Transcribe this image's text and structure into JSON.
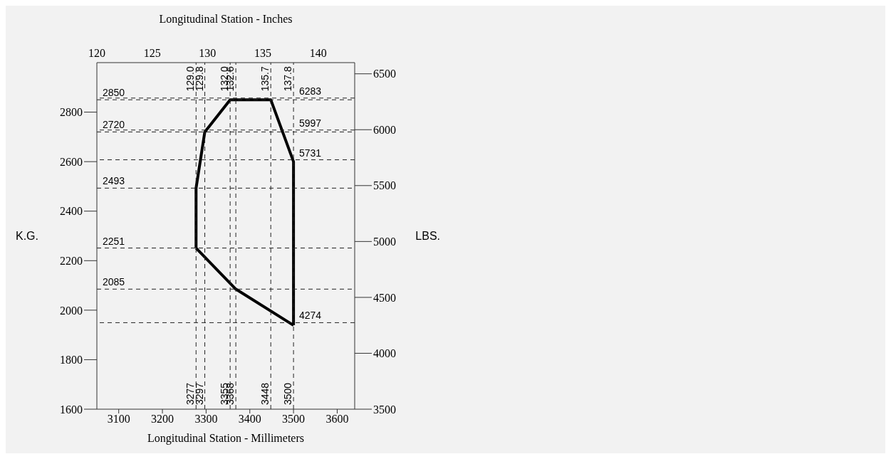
{
  "chart_data": {
    "type": "line",
    "xlabel": "Longitudinal Station  -  Millimeters",
    "x2label": "Longitudinal Station - Inches",
    "ylabel": "K.G.",
    "y2label": "LBS.",
    "xlim": [
      3050,
      3640
    ],
    "xticks": [
      3100,
      3200,
      3300,
      3400,
      3500,
      3600
    ],
    "x2lim": [
      120,
      143.3
    ],
    "x2ticks": [
      120,
      125,
      130,
      135,
      140
    ],
    "ylim": [
      1600,
      3000
    ],
    "yticks": [
      1600,
      1800,
      2000,
      2200,
      2400,
      2600,
      2800
    ],
    "y2lim": [
      3500,
      6600
    ],
    "y2ticks": [
      3500,
      4000,
      4500,
      5000,
      5500,
      6000,
      6500
    ],
    "series": [
      {
        "color": "#000000",
        "x": [
          3277,
          3277,
          3297,
          3355,
          3448,
          3500,
          3500
        ],
        "values": [
          2251,
          2493,
          2720,
          2850,
          2850,
          2600,
          1939
        ]
      },
      {
        "color": "#000000",
        "x": [
          3277,
          3368,
          3500
        ],
        "values": [
          2251,
          2085,
          1939
        ]
      }
    ],
    "ref_lines": [
      {
        "axis": "y",
        "value": 2850,
        "label": "2850",
        "line_style": "dashed"
      },
      {
        "axis": "y",
        "value": 2720,
        "label": "2720",
        "line_style": "dashed"
      },
      {
        "axis": "y",
        "value": 2493,
        "label": "2493",
        "line_style": "dashed"
      },
      {
        "axis": "y",
        "value": 2251,
        "label": "2251",
        "line_style": "dashed"
      },
      {
        "axis": "y",
        "value": 2085,
        "label": "2085",
        "line_style": "dashed"
      },
      {
        "axis": "y2",
        "value": 6283,
        "label": "6283",
        "line_style": "dashed"
      },
      {
        "axis": "y2",
        "value": 5997,
        "label": "5997",
        "line_style": "dashed"
      },
      {
        "axis": "y2",
        "value": 5731,
        "label": "5731",
        "line_style": "dashed"
      },
      {
        "axis": "y2",
        "value": 4274,
        "label": "4274",
        "line_style": "dashed"
      },
      {
        "axis": "x",
        "value": 3277,
        "label": "3277",
        "line_style": "dashed"
      },
      {
        "axis": "x",
        "value": 3297,
        "label": "3297",
        "line_style": "dashed"
      },
      {
        "axis": "x",
        "value": 3355,
        "label": "3355",
        "line_style": "dashed"
      },
      {
        "axis": "x",
        "value": 3368,
        "label": "3368",
        "line_style": "dashed"
      },
      {
        "axis": "x",
        "value": 3448,
        "label": "3448",
        "line_style": "dashed"
      },
      {
        "axis": "x",
        "value": 3500,
        "label": "3500",
        "line_style": "dashed"
      }
    ],
    "annotations": [
      {
        "text": "129.0",
        "x": 3277,
        "y": 2985
      },
      {
        "text": "129.8",
        "x": 3297,
        "y": 2985
      },
      {
        "text": "132.0",
        "x": 3355,
        "y": 2985
      },
      {
        "text": "132.6",
        "x": 3368,
        "y": 2985
      },
      {
        "text": "135.7",
        "x": 3448,
        "y": 2985
      },
      {
        "text": "137.8",
        "x": 3500,
        "y": 2985
      }
    ]
  }
}
